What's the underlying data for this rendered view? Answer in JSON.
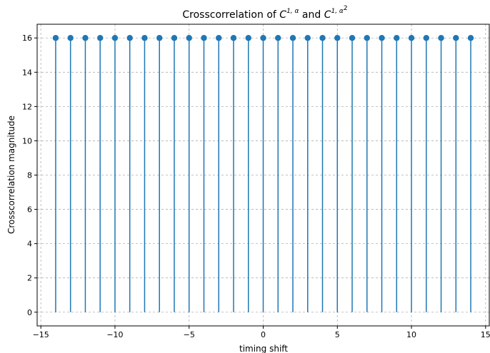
{
  "chart_data": {
    "type": "stem",
    "title": {
      "prefix": "Crosscorrelation of ",
      "sym1": "C",
      "sup1": "1, α",
      "middle": " and ",
      "sym2": "C",
      "sup2": "1, α",
      "sup2_exp": "2"
    },
    "xlabel": "timing shift",
    "ylabel": "Crosscorrelation magnitude",
    "xlim": [
      -15.25,
      15.25
    ],
    "ylim": [
      -0.8,
      16.8
    ],
    "xticks": [
      -15,
      -10,
      -5,
      0,
      5,
      10,
      15
    ],
    "xtick_labels": [
      "−15",
      "−10",
      "−5",
      "0",
      "5",
      "10",
      "15"
    ],
    "yticks": [
      0,
      2,
      4,
      6,
      8,
      10,
      12,
      14,
      16
    ],
    "grid": true,
    "grid_style": "dashed",
    "series": [
      {
        "color": "#1f77b4",
        "x": [
          -14,
          -13,
          -12,
          -11,
          -10,
          -9,
          -8,
          -7,
          -6,
          -5,
          -4,
          -3,
          -2,
          -1,
          0,
          1,
          2,
          3,
          4,
          5,
          6,
          7,
          8,
          9,
          10,
          11,
          12,
          13,
          14
        ],
        "y": [
          16,
          16,
          16,
          16,
          16,
          16,
          16,
          16,
          16,
          16,
          16,
          16,
          16,
          16,
          16,
          16,
          16,
          16,
          16,
          16,
          16,
          16,
          16,
          16,
          16,
          16,
          16,
          16,
          16
        ]
      }
    ]
  }
}
